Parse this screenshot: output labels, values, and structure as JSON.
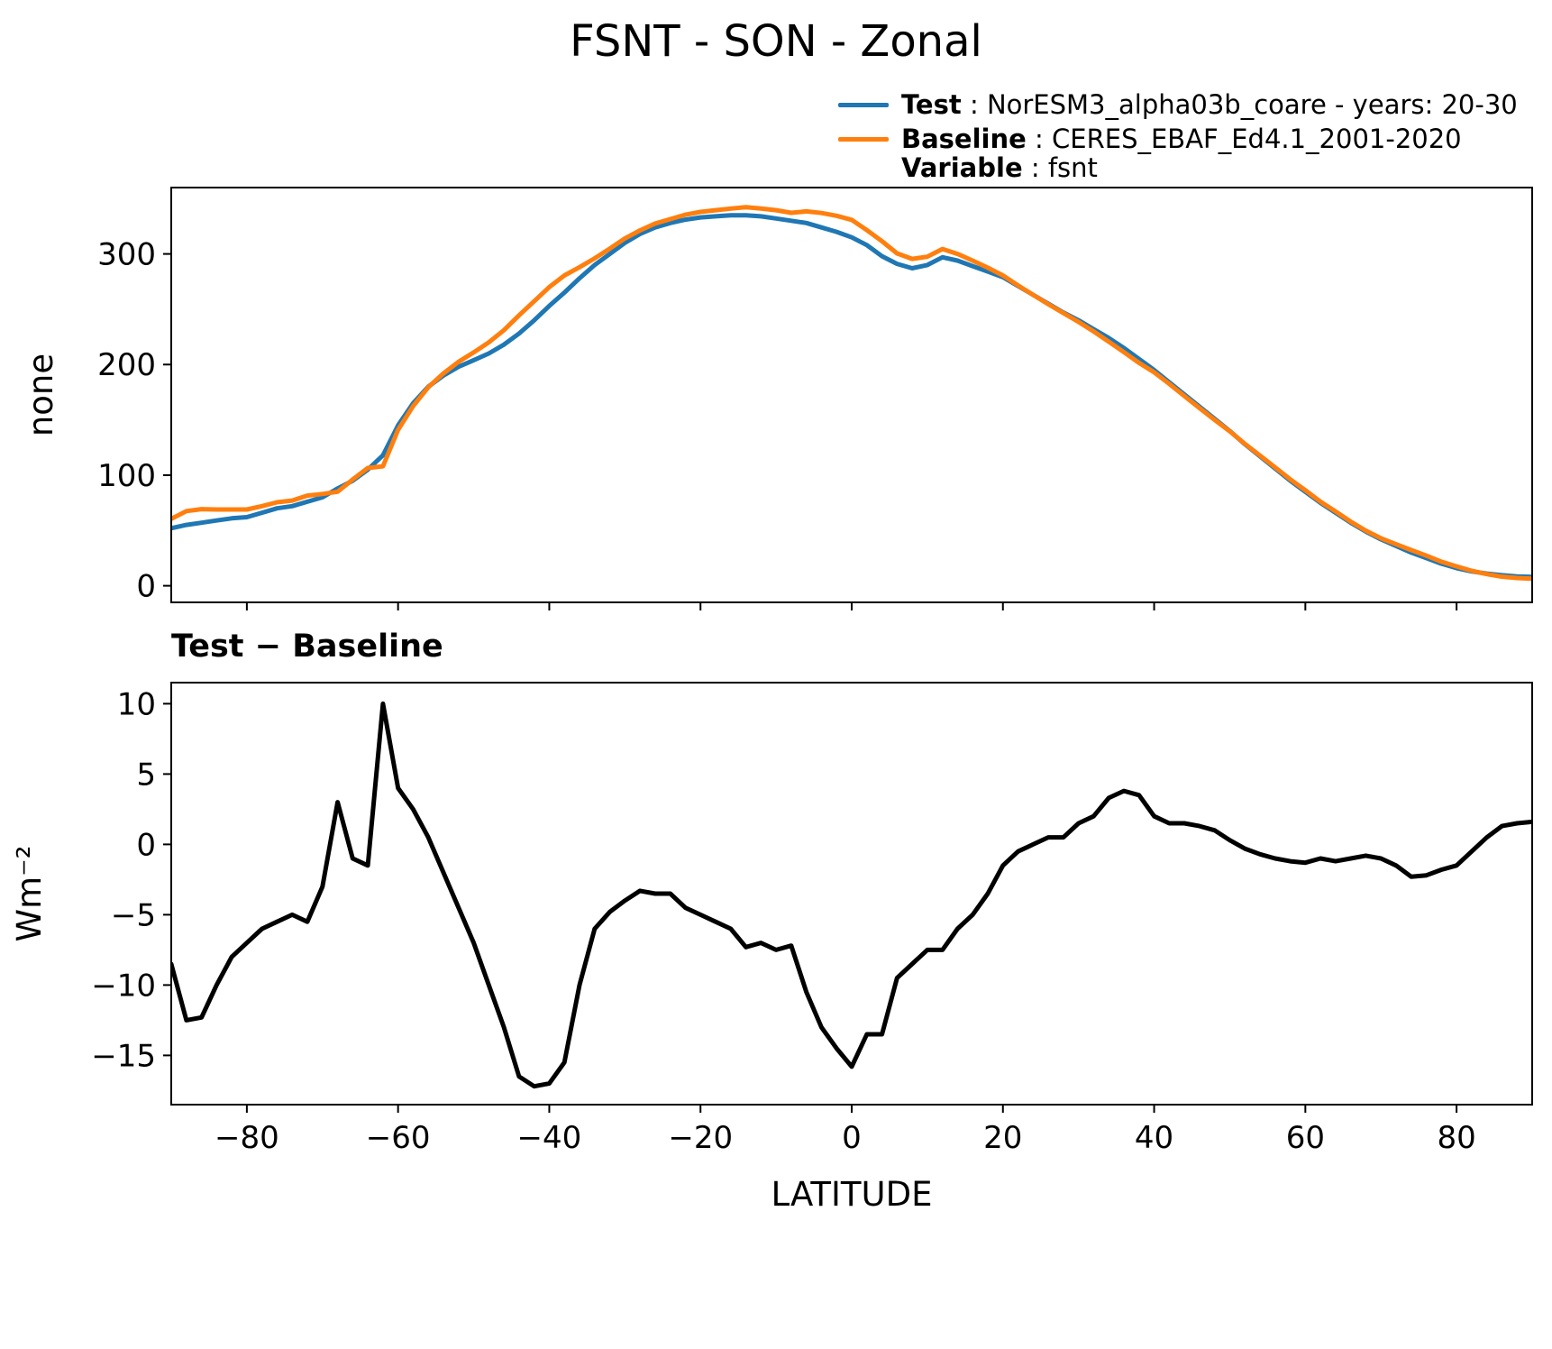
{
  "title": "FSNT - SON - Zonal",
  "subtitle": "Test − Baseline",
  "legend": [
    {
      "swatch": "#1f77b4",
      "label": "Test",
      "text": " : NorESM3_alpha03b_coare - years: 20-30"
    },
    {
      "swatch": "#ff7f0e",
      "label": "Baseline",
      "text": " : CERES_EBAF_Ed4.1_2001-2020"
    },
    {
      "swatch": "",
      "label": "Variable",
      "text": " : fsnt"
    }
  ],
  "chart_data": [
    {
      "type": "line",
      "title": "FSNT - SON - Zonal",
      "xlabel": "LATITUDE",
      "ylabel": "none",
      "xlim": [
        -90,
        90
      ],
      "ylim": [
        -15,
        360
      ],
      "xticks": [
        -80,
        -60,
        -40,
        -20,
        0,
        20,
        40,
        60,
        80
      ],
      "yticks": [
        0,
        100,
        200,
        300
      ],
      "grid": false,
      "legend_position": "upper right, outside axes",
      "x": [
        -90,
        -88,
        -86,
        -84,
        -82,
        -80,
        -78,
        -76,
        -74,
        -72,
        -70,
        -68,
        -66,
        -64,
        -62,
        -60,
        -58,
        -56,
        -54,
        -52,
        -50,
        -48,
        -46,
        -44,
        -42,
        -40,
        -38,
        -36,
        -34,
        -32,
        -30,
        -28,
        -26,
        -24,
        -22,
        -20,
        -18,
        -16,
        -14,
        -12,
        -10,
        -8,
        -6,
        -4,
        -2,
        0,
        2,
        4,
        6,
        8,
        10,
        12,
        14,
        16,
        18,
        20,
        22,
        24,
        26,
        28,
        30,
        32,
        34,
        36,
        38,
        40,
        42,
        44,
        46,
        48,
        50,
        52,
        54,
        56,
        58,
        60,
        62,
        64,
        66,
        68,
        70,
        72,
        74,
        76,
        78,
        80,
        82,
        84,
        86,
        88,
        90
      ],
      "series": [
        {
          "name": "Test : NorESM3_alpha03b_coare - years: 20-30",
          "color": "#1f77b4",
          "values": [
            52,
            55,
            57,
            59,
            61,
            62,
            66,
            70,
            72,
            76,
            80,
            88,
            95,
            105,
            118,
            145,
            165,
            180,
            190,
            198,
            204,
            210,
            218,
            228,
            240,
            253,
            265,
            278,
            290,
            300,
            310,
            318,
            324,
            328,
            331,
            333,
            334,
            335,
            335,
            334,
            332,
            330,
            328,
            324,
            320,
            315,
            308,
            298,
            291,
            287,
            290,
            297,
            294,
            289,
            284,
            279,
            271,
            263,
            255,
            247,
            240,
            232,
            224,
            215,
            205,
            195,
            184,
            173,
            162,
            151,
            140,
            128,
            117,
            106,
            95,
            85,
            75,
            66,
            57,
            49,
            42,
            36,
            30,
            25,
            20,
            16,
            13,
            11,
            9.5,
            8.5,
            8
          ]
        },
        {
          "name": "Baseline : CERES_EBAF_Ed4.1_2001-2020, Variable : fsnt",
          "color": "#ff7f0e",
          "values": [
            60.5,
            67.5,
            69.3,
            69,
            69,
            69,
            72,
            75.5,
            77,
            81.5,
            83,
            85,
            96,
            106.5,
            108,
            141,
            162.5,
            179.5,
            192,
            202.5,
            211,
            220,
            231,
            244.5,
            257.2,
            270,
            280.5,
            288,
            296,
            304.8,
            314,
            321.3,
            327.5,
            331.5,
            335.5,
            338,
            339.5,
            341,
            342.3,
            341,
            339.5,
            337.2,
            338.5,
            337,
            334.5,
            330.8,
            321.5,
            311.5,
            300.5,
            295.5,
            297.5,
            304.5,
            300,
            294,
            287.5,
            280.5,
            271.5,
            263,
            254.5,
            246.5,
            238.5,
            230,
            220.7,
            211.2,
            201.5,
            193,
            182.5,
            171.5,
            160.7,
            150,
            139.7,
            128.3,
            117.7,
            107,
            96.2,
            86.3,
            76,
            67.2,
            58,
            49.8,
            43,
            37.5,
            32.3,
            27.2,
            21.8,
            17.5,
            13.5,
            10.5,
            8.2,
            7,
            6.4
          ]
        }
      ]
    },
    {
      "type": "line",
      "title": "Test − Baseline",
      "xlabel": "LATITUDE",
      "ylabel": "Wm⁻²",
      "xlim": [
        -90,
        90
      ],
      "ylim": [
        -18.5,
        11.5
      ],
      "xticks": [
        -80,
        -60,
        -40,
        -20,
        0,
        20,
        40,
        60,
        80
      ],
      "yticks": [
        10,
        5,
        0,
        -5,
        -10,
        -15
      ],
      "grid": false,
      "x": [
        -90,
        -88,
        -86,
        -84,
        -82,
        -80,
        -78,
        -76,
        -74,
        -72,
        -70,
        -68,
        -66,
        -64,
        -62,
        -60,
        -58,
        -56,
        -54,
        -52,
        -50,
        -48,
        -46,
        -44,
        -42,
        -40,
        -38,
        -36,
        -34,
        -32,
        -30,
        -28,
        -26,
        -24,
        -22,
        -20,
        -18,
        -16,
        -14,
        -12,
        -10,
        -8,
        -6,
        -4,
        -2,
        0,
        2,
        4,
        6,
        8,
        10,
        12,
        14,
        16,
        18,
        20,
        22,
        24,
        26,
        28,
        30,
        32,
        34,
        36,
        38,
        40,
        42,
        44,
        46,
        48,
        50,
        52,
        54,
        56,
        58,
        60,
        62,
        64,
        66,
        68,
        70,
        72,
        74,
        76,
        78,
        80,
        82,
        84,
        86,
        88,
        90
      ],
      "series": [
        {
          "name": "Test − Baseline",
          "color": "#000000",
          "values": [
            -8.5,
            -12.5,
            -12.3,
            -10,
            -8,
            -7,
            -6,
            -5.5,
            -5,
            -5.5,
            -3,
            3,
            -1,
            -1.5,
            10,
            4,
            2.5,
            0.5,
            -2,
            -4.5,
            -7,
            -10,
            -13,
            -16.5,
            -17.2,
            -17,
            -15.5,
            -10,
            -6,
            -4.8,
            -4,
            -3.3,
            -3.5,
            -3.5,
            -4.5,
            -5,
            -5.5,
            -6,
            -7.3,
            -7,
            -7.5,
            -7.2,
            -10.5,
            -13,
            -14.5,
            -15.8,
            -13.5,
            -13.5,
            -9.5,
            -8.5,
            -7.5,
            -7.5,
            -6,
            -5,
            -3.5,
            -1.5,
            -0.5,
            0,
            0.5,
            0.5,
            1.5,
            2,
            3.3,
            3.8,
            3.5,
            2,
            1.5,
            1.5,
            1.3,
            1,
            0.3,
            -0.3,
            -0.7,
            -1,
            -1.2,
            -1.3,
            -1,
            -1.2,
            -1,
            -0.8,
            -1,
            -1.5,
            -2.3,
            -2.2,
            -1.8,
            -1.5,
            -0.5,
            0.5,
            1.3,
            1.5,
            1.6
          ]
        }
      ]
    }
  ]
}
